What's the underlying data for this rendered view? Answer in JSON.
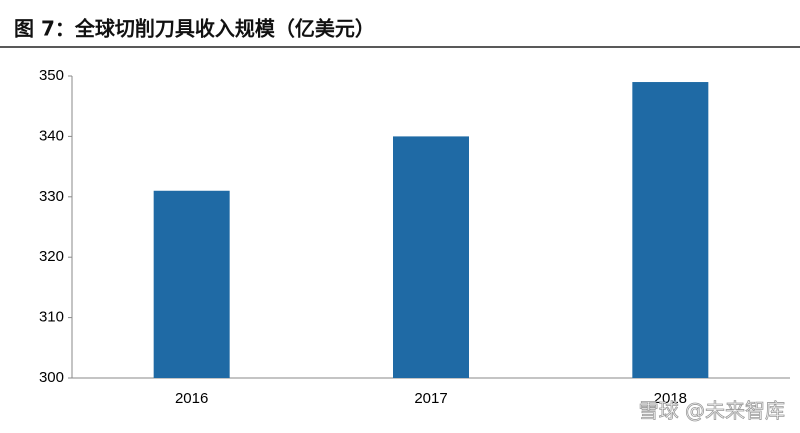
{
  "chart_data": {
    "type": "bar",
    "title": "图 7：全球切削刀具收入规模（亿美元）",
    "categories": [
      "2016",
      "2017",
      "2018"
    ],
    "values": [
      331,
      340,
      349
    ],
    "color": "#1f6aa5",
    "ylim": [
      300,
      350
    ],
    "yticks": [
      300,
      310,
      320,
      330,
      340,
      350
    ],
    "grid": false,
    "watermark": "雪球 @未来智库"
  }
}
